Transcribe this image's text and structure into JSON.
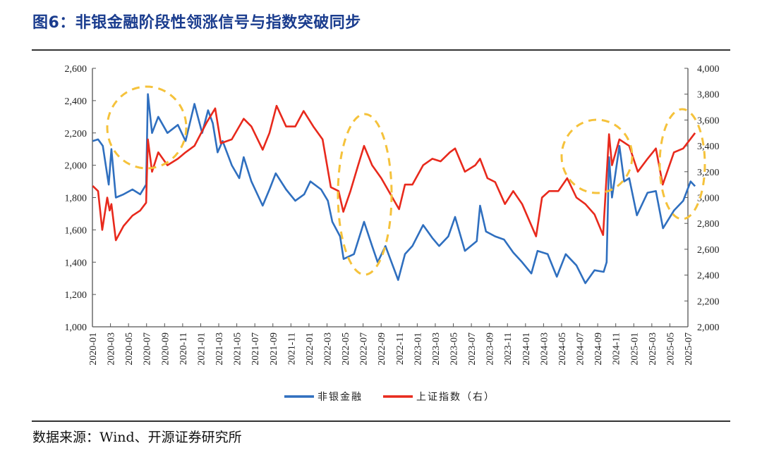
{
  "title": "图6：非银金融阶段性领涨信号与指数突破同步",
  "source": "数据来源：Wind、开源证券研究所",
  "colors": {
    "title": "#1a3c8e",
    "blue": "#2f6fbf",
    "red": "#e8291c",
    "highlight": "#f5c23b"
  },
  "chart_data": {
    "type": "line",
    "title": "",
    "xlabel": "",
    "ylabel_left": "",
    "ylabel_right": "",
    "ylim_left": [
      1000,
      2600
    ],
    "ylim_right": [
      2000,
      4000
    ],
    "yticks_left": [
      "1,000",
      "1,200",
      "1,400",
      "1,600",
      "1,800",
      "2,000",
      "2,200",
      "2,400",
      "2,600"
    ],
    "yticks_right": [
      "2,000",
      "2,200",
      "2,400",
      "2,600",
      "2,800",
      "3,000",
      "3,200",
      "3,400",
      "3,600",
      "3,800",
      "4,000"
    ],
    "xticks": [
      "2020-01",
      "2020-03",
      "2020-05",
      "2020-07",
      "2020-09",
      "2020-11",
      "2021-01",
      "2021-03",
      "2021-05",
      "2021-07",
      "2021-09",
      "2021-11",
      "2022-01",
      "2022-03",
      "2022-05",
      "2022-07",
      "2022-09",
      "2022-11",
      "2023-01",
      "2023-03",
      "2023-05",
      "2023-07",
      "2023-09",
      "2023-11",
      "2024-01",
      "2024-03",
      "2024-05",
      "2024-07",
      "2024-09",
      "2024-11",
      "2025-01",
      "2025-03",
      "2025-05",
      "2025-07"
    ],
    "grid": false,
    "legend": "bottom",
    "annotations": "dashed yellow ellipses highlighting 2020-07, 2022-07, 2024-10, 2025-07",
    "series": [
      {
        "name": "非银金融",
        "axis": "left",
        "color": "#2f6fbf",
        "x": [
          "2020-01-02",
          "2020-01-20",
          "2020-02-05",
          "2020-02-25",
          "2020-03-05",
          "2020-03-20",
          "2020-04-15",
          "2020-05-15",
          "2020-06-10",
          "2020-06-30",
          "2020-07-06",
          "2020-07-20",
          "2020-08-10",
          "2020-09-10",
          "2020-10-15",
          "2020-11-10",
          "2020-12-10",
          "2021-01-05",
          "2021-01-25",
          "2021-02-10",
          "2021-02-26",
          "2021-03-15",
          "2021-04-15",
          "2021-05-10",
          "2021-05-25",
          "2021-06-20",
          "2021-07-28",
          "2021-08-20",
          "2021-09-10",
          "2021-10-15",
          "2021-11-15",
          "2021-12-15",
          "2022-01-05",
          "2022-02-10",
          "2022-03-05",
          "2022-03-20",
          "2022-04-15",
          "2022-04-27",
          "2022-06-01",
          "2022-07-05",
          "2022-08-01",
          "2022-08-20",
          "2022-09-15",
          "2022-10-28",
          "2022-11-20",
          "2022-12-15",
          "2023-01-20",
          "2023-02-20",
          "2023-03-15",
          "2023-04-15",
          "2023-05-08",
          "2023-06-10",
          "2023-07-20",
          "2023-07-31",
          "2023-08-20",
          "2023-09-20",
          "2023-10-20",
          "2023-11-20",
          "2023-12-20",
          "2024-01-20",
          "2024-02-10",
          "2024-03-15",
          "2024-04-15",
          "2024-05-15",
          "2024-06-20",
          "2024-07-20",
          "2024-08-20",
          "2024-09-20",
          "2024-09-30",
          "2024-10-08",
          "2024-10-18",
          "2024-11-12",
          "2024-11-28",
          "2024-12-15",
          "2025-01-10",
          "2025-02-15",
          "2025-03-15",
          "2025-04-08",
          "2025-05-15",
          "2025-06-15",
          "2025-07-10",
          "2025-07-25"
        ],
        "y": [
          2150,
          2160,
          2120,
          1880,
          2100,
          1800,
          1820,
          1850,
          1820,
          1880,
          2440,
          2200,
          2300,
          2200,
          2250,
          2150,
          2380,
          2200,
          2340,
          2260,
          2080,
          2150,
          2000,
          1920,
          2050,
          1900,
          1750,
          1850,
          1950,
          1850,
          1780,
          1820,
          1900,
          1850,
          1780,
          1650,
          1560,
          1420,
          1450,
          1650,
          1500,
          1400,
          1500,
          1290,
          1450,
          1500,
          1630,
          1550,
          1500,
          1560,
          1680,
          1470,
          1530,
          1750,
          1590,
          1560,
          1540,
          1460,
          1400,
          1330,
          1470,
          1450,
          1310,
          1450,
          1380,
          1270,
          1350,
          1340,
          1400,
          2050,
          1800,
          2120,
          1900,
          1920,
          1690,
          1830,
          1840,
          1610,
          1720,
          1780,
          1900,
          1870
        ]
      },
      {
        "name": "上证指数（右）",
        "axis": "right",
        "color": "#e8291c",
        "x": [
          "2020-01-02",
          "2020-01-20",
          "2020-02-03",
          "2020-02-20",
          "2020-02-28",
          "2020-03-05",
          "2020-03-20",
          "2020-04-15",
          "2020-05-15",
          "2020-06-10",
          "2020-06-30",
          "2020-07-06",
          "2020-07-20",
          "2020-08-10",
          "2020-09-10",
          "2020-10-15",
          "2020-11-10",
          "2020-12-10",
          "2021-01-20",
          "2021-02-18",
          "2021-03-09",
          "2021-04-15",
          "2021-05-25",
          "2021-06-20",
          "2021-07-28",
          "2021-08-20",
          "2021-09-13",
          "2021-10-15",
          "2021-11-15",
          "2021-12-13",
          "2022-01-15",
          "2022-02-15",
          "2022-03-15",
          "2022-04-10",
          "2022-04-26",
          "2022-05-20",
          "2022-06-15",
          "2022-07-05",
          "2022-08-01",
          "2022-09-01",
          "2022-10-31",
          "2022-11-20",
          "2022-12-15",
          "2023-01-20",
          "2023-02-20",
          "2023-03-20",
          "2023-04-20",
          "2023-05-08",
          "2023-06-10",
          "2023-07-15",
          "2023-07-31",
          "2023-08-25",
          "2023-09-20",
          "2023-10-23",
          "2023-11-20",
          "2023-12-20",
          "2024-02-05",
          "2024-02-25",
          "2024-03-20",
          "2024-04-20",
          "2024-05-20",
          "2024-06-20",
          "2024-07-20",
          "2024-08-20",
          "2024-09-18",
          "2024-10-08",
          "2024-10-18",
          "2024-11-12",
          "2024-12-15",
          "2025-01-13",
          "2025-02-15",
          "2025-03-15",
          "2025-04-07",
          "2025-05-15",
          "2025-06-15",
          "2025-07-25"
        ],
        "y": [
          3090,
          3050,
          2750,
          3000,
          2900,
          2950,
          2670,
          2780,
          2860,
          2900,
          2960,
          3450,
          3200,
          3350,
          3250,
          3300,
          3350,
          3400,
          3580,
          3690,
          3420,
          3450,
          3610,
          3550,
          3370,
          3500,
          3710,
          3550,
          3550,
          3670,
          3550,
          3450,
          3080,
          3050,
          2890,
          3050,
          3250,
          3400,
          3250,
          3150,
          2910,
          3100,
          3100,
          3250,
          3300,
          3280,
          3350,
          3380,
          3200,
          3250,
          3300,
          3150,
          3120,
          2950,
          3050,
          2950,
          2700,
          3000,
          3050,
          3050,
          3150,
          3000,
          2950,
          2870,
          2710,
          3490,
          3250,
          3450,
          3400,
          3200,
          3300,
          3380,
          3100,
          3350,
          3380,
          3500
        ]
      }
    ]
  }
}
